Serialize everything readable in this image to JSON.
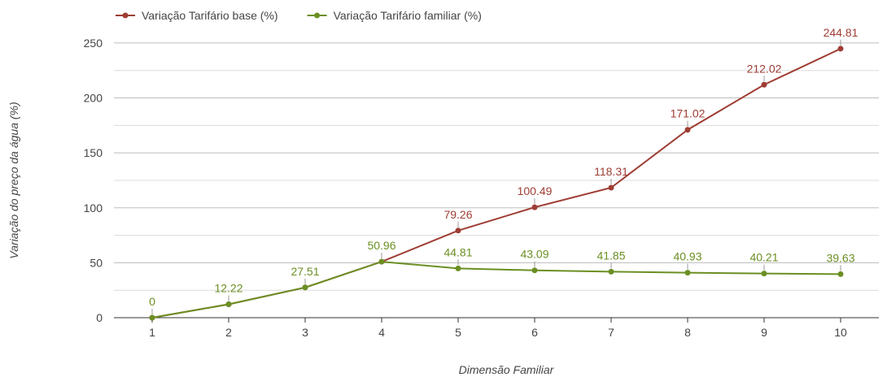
{
  "chart_data": {
    "type": "line",
    "title": "",
    "xlabel": "Dimensão Familiar",
    "ylabel": "Variação do preço da água (%)",
    "categories": [
      "1",
      "2",
      "3",
      "4",
      "5",
      "6",
      "7",
      "8",
      "9",
      "10"
    ],
    "ylim": [
      0,
      262.5
    ],
    "yticks": [
      "0",
      "50",
      "100",
      "150",
      "200",
      "250"
    ],
    "grid": true,
    "legend_position": "top-left",
    "series": [
      {
        "name": "Variação Tarifário base (%)",
        "color": "#9e3d33",
        "values": [
          0,
          12.22,
          27.51,
          50.96,
          79.26,
          100.49,
          118.31,
          171.02,
          212.02,
          244.81
        ],
        "labels": [
          "",
          "",
          "",
          "",
          "79.26",
          "100.49",
          "118.31",
          "171.02",
          "212.02",
          "244.81"
        ]
      },
      {
        "name": "Variação Tarifário familiar (%)",
        "color": "#6b8f23",
        "values": [
          0,
          12.22,
          27.51,
          50.96,
          44.81,
          43.09,
          41.85,
          40.93,
          40.21,
          39.63
        ],
        "labels": [
          "0",
          "12.22",
          "27.51",
          "50.96",
          "44.81",
          "43.09",
          "41.85",
          "40.93",
          "40.21",
          "39.63"
        ]
      }
    ]
  }
}
